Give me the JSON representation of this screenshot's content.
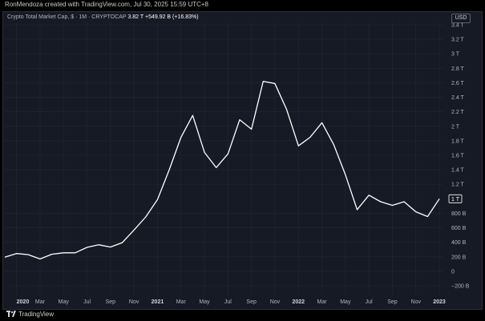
{
  "header": {
    "credit": "RonMendoza created with TradingView.com, Jul 30, 2025 15:59 UTC+8"
  },
  "legend": {
    "title": "Crypto Total Market Cap, $ · 1M · CRYPTOCAP",
    "value": "3.82 T",
    "change": "+549.92 B (+16.83%)"
  },
  "currency_button": "USD",
  "footer": {
    "brand": "TradingView"
  },
  "colors": {
    "background": "#161a25",
    "line": "#ffffff",
    "grid": "#232733",
    "text": "#b2b5be"
  },
  "chart_data": {
    "type": "line",
    "ylim": [
      -200,
      3500
    ],
    "y_ticks": [
      {
        "value": -200,
        "label": "−200 B"
      },
      {
        "value": 0,
        "label": "0"
      },
      {
        "value": 200,
        "label": "200 B"
      },
      {
        "value": 400,
        "label": "400 B"
      },
      {
        "value": 600,
        "label": "600 B"
      },
      {
        "value": 800,
        "label": "800 B"
      },
      {
        "value": 1200,
        "label": "1.2 T"
      },
      {
        "value": 1400,
        "label": "1.4 T"
      },
      {
        "value": 1600,
        "label": "1.6 T"
      },
      {
        "value": 1800,
        "label": "1.8 T"
      },
      {
        "value": 2000,
        "label": "2 T"
      },
      {
        "value": 2200,
        "label": "2.2 T"
      },
      {
        "value": 2400,
        "label": "2.4 T"
      },
      {
        "value": 2600,
        "label": "2.6 T"
      },
      {
        "value": 2800,
        "label": "2.8 T"
      },
      {
        "value": 3000,
        "label": "3 T"
      },
      {
        "value": 3200,
        "label": "3.2 T"
      },
      {
        "value": 3400,
        "label": "3.4 T"
      }
    ],
    "x_ticks": [
      {
        "month": "2020-01",
        "label": "2020",
        "bold": true
      },
      {
        "month": "2020-03",
        "label": "Mar"
      },
      {
        "month": "2020-05",
        "label": "May"
      },
      {
        "month": "2020-07",
        "label": "Jul"
      },
      {
        "month": "2020-09",
        "label": "Sep"
      },
      {
        "month": "2020-11",
        "label": "Nov"
      },
      {
        "month": "2021-01",
        "label": "2021",
        "bold": true
      },
      {
        "month": "2021-03",
        "label": "Mar"
      },
      {
        "month": "2021-05",
        "label": "May"
      },
      {
        "month": "2021-07",
        "label": "Jul"
      },
      {
        "month": "2021-09",
        "label": "Sep"
      },
      {
        "month": "2021-11",
        "label": "Nov"
      },
      {
        "month": "2022-01",
        "label": "2022",
        "bold": true
      },
      {
        "month": "2022-03",
        "label": "Mar"
      },
      {
        "month": "2022-05",
        "label": "May"
      },
      {
        "month": "2022-07",
        "label": "Jul"
      },
      {
        "month": "2022-09",
        "label": "Sep"
      },
      {
        "month": "2022-11",
        "label": "Nov"
      },
      {
        "month": "2023-01",
        "label": "2023",
        "bold": true
      }
    ],
    "price_label": {
      "value": 1000,
      "label": "1 T"
    },
    "series": [
      {
        "x": [
          "2019-12",
          "2020-01",
          "2020-02",
          "2020-03",
          "2020-04",
          "2020-05",
          "2020-06",
          "2020-07",
          "2020-08",
          "2020-09",
          "2020-10",
          "2020-11",
          "2020-12",
          "2021-01",
          "2021-02",
          "2021-03",
          "2021-04",
          "2021-05",
          "2021-06",
          "2021-07",
          "2021-08",
          "2021-09",
          "2021-10",
          "2021-11",
          "2021-12",
          "2022-01",
          "2022-02",
          "2022-03",
          "2022-04",
          "2022-05",
          "2022-06",
          "2022-07",
          "2022-08",
          "2022-09",
          "2022-10",
          "2022-11",
          "2022-12",
          "2023-01"
        ],
        "values": [
          195,
          245,
          230,
          170,
          235,
          255,
          255,
          330,
          365,
          335,
          395,
          570,
          750,
          990,
          1400,
          1850,
          2150,
          1640,
          1430,
          1620,
          2090,
          1960,
          2620,
          2590,
          2230,
          1730,
          1850,
          2050,
          1750,
          1330,
          850,
          1050,
          960,
          910,
          960,
          820,
          755,
          1000
        ]
      }
    ]
  }
}
